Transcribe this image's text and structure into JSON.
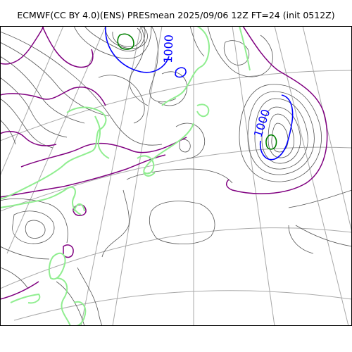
{
  "title": "ECMWF(CC BY 4.0)(ENS) PRESmean 2025/09/06 12Z FT=24 (init 0512Z)",
  "contour_labels": [
    "1000",
    "1000"
  ],
  "colors": {
    "coastline": "#90ee90",
    "isobar_thin": "#555555",
    "isobar_purple": "#800080",
    "isobar_1000": "#0000ff",
    "low_center": "#008000",
    "graticule": "#a9a9a9",
    "frame": "#000000"
  }
}
